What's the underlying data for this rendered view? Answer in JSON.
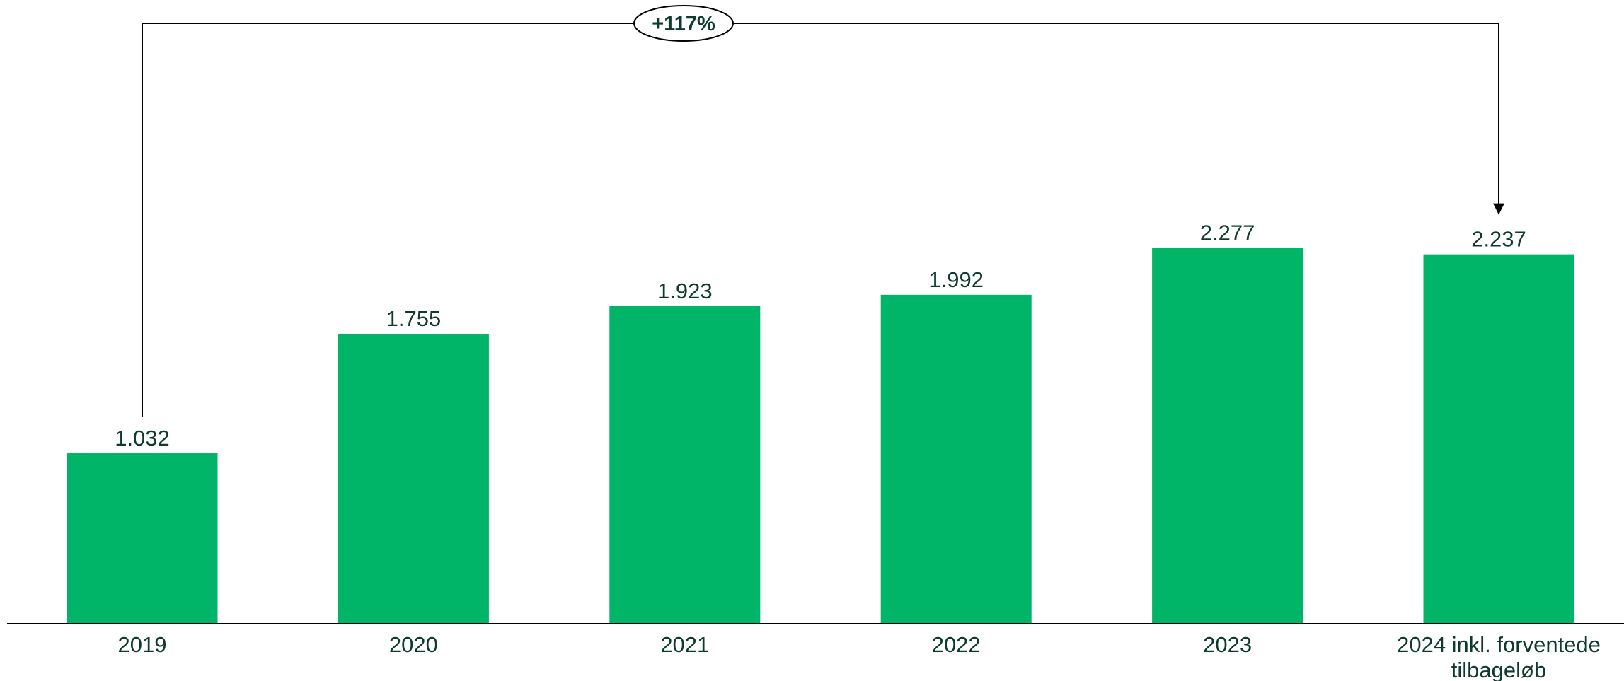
{
  "chart_data": {
    "type": "bar",
    "categories": [
      "2019",
      "2020",
      "2021",
      "2022",
      "2023",
      [
        "2024 inkl. forventede",
        "tilbageløb"
      ]
    ],
    "values": [
      1032,
      1755,
      1923,
      1992,
      2277,
      2237
    ],
    "value_labels": [
      "1.032",
      "1.755",
      "1.923",
      "1.992",
      "2.277",
      "2.237"
    ],
    "ylim": [
      0,
      2400
    ],
    "grid": false,
    "bar_color": "#00B468",
    "label_color": "#0E3B2E",
    "annotation": {
      "text": "+117%",
      "from_category": 0,
      "to_category": 5
    }
  }
}
